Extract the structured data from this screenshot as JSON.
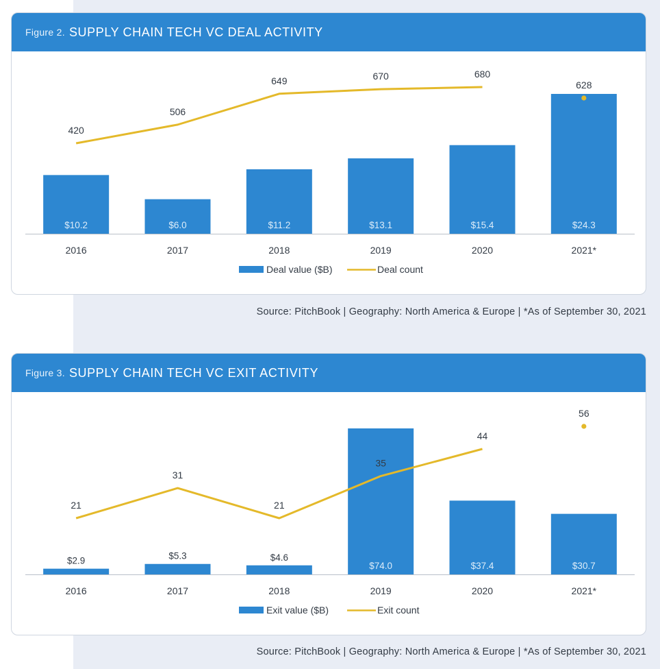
{
  "colors": {
    "bar": "#2d87d1",
    "line": "#e4b92a",
    "header": "#2d87d1",
    "panel": "#e9edf5"
  },
  "chart_data": [
    {
      "type": "bar",
      "figure_label": "Figure 2.",
      "title": "SUPPLY CHAIN TECH VC DEAL ACTIVITY",
      "categories": [
        "2016",
        "2017",
        "2018",
        "2019",
        "2020",
        "2021*"
      ],
      "series": [
        {
          "name": "Deal value ($B)",
          "kind": "bar",
          "values": [
            10.2,
            6.0,
            11.2,
            13.1,
            15.4,
            24.3
          ],
          "labels": [
            "$10.2",
            "$6.0",
            "$11.2",
            "$13.1",
            "$15.4",
            "$24.3"
          ]
        },
        {
          "name": "Deal count",
          "kind": "line",
          "values": [
            420,
            506,
            649,
            670,
            680,
            628
          ],
          "labels": [
            "420",
            "506",
            "649",
            "670",
            "680",
            "628"
          ],
          "standalone_last": true
        }
      ],
      "y1lim": [
        0,
        24.3
      ],
      "y2lim": [
        0,
        800
      ],
      "legend": [
        "Deal value ($B)",
        "Deal count"
      ],
      "source": "Source: PitchBook  |  Geography: North America & Europe  |  *As of September 30, 2021"
    },
    {
      "type": "bar",
      "figure_label": "Figure 3.",
      "title": "SUPPLY CHAIN TECH VC EXIT ACTIVITY",
      "categories": [
        "2016",
        "2017",
        "2018",
        "2019",
        "2020",
        "2021*"
      ],
      "series": [
        {
          "name": "Exit value ($B)",
          "kind": "bar",
          "values": [
            2.9,
            5.3,
            4.6,
            74.0,
            37.4,
            30.7
          ],
          "labels": [
            "$2.9",
            "$5.3",
            "$4.6",
            "$74.0",
            "$37.4",
            "$30.7"
          ]
        },
        {
          "name": "Exit count",
          "kind": "line",
          "values": [
            21,
            31,
            21,
            35,
            44,
            56
          ],
          "labels": [
            "21",
            "31",
            "21",
            "35",
            "44",
            "56"
          ],
          "standalone_last": true
        }
      ],
      "y1lim": [
        0,
        74.0
      ],
      "y2lim": [
        0,
        70
      ],
      "legend": [
        "Exit value ($B)",
        "Exit count"
      ],
      "source": "Source: PitchBook  |  Geography: North America & Europe  |  *As of September 30, 2021"
    }
  ]
}
